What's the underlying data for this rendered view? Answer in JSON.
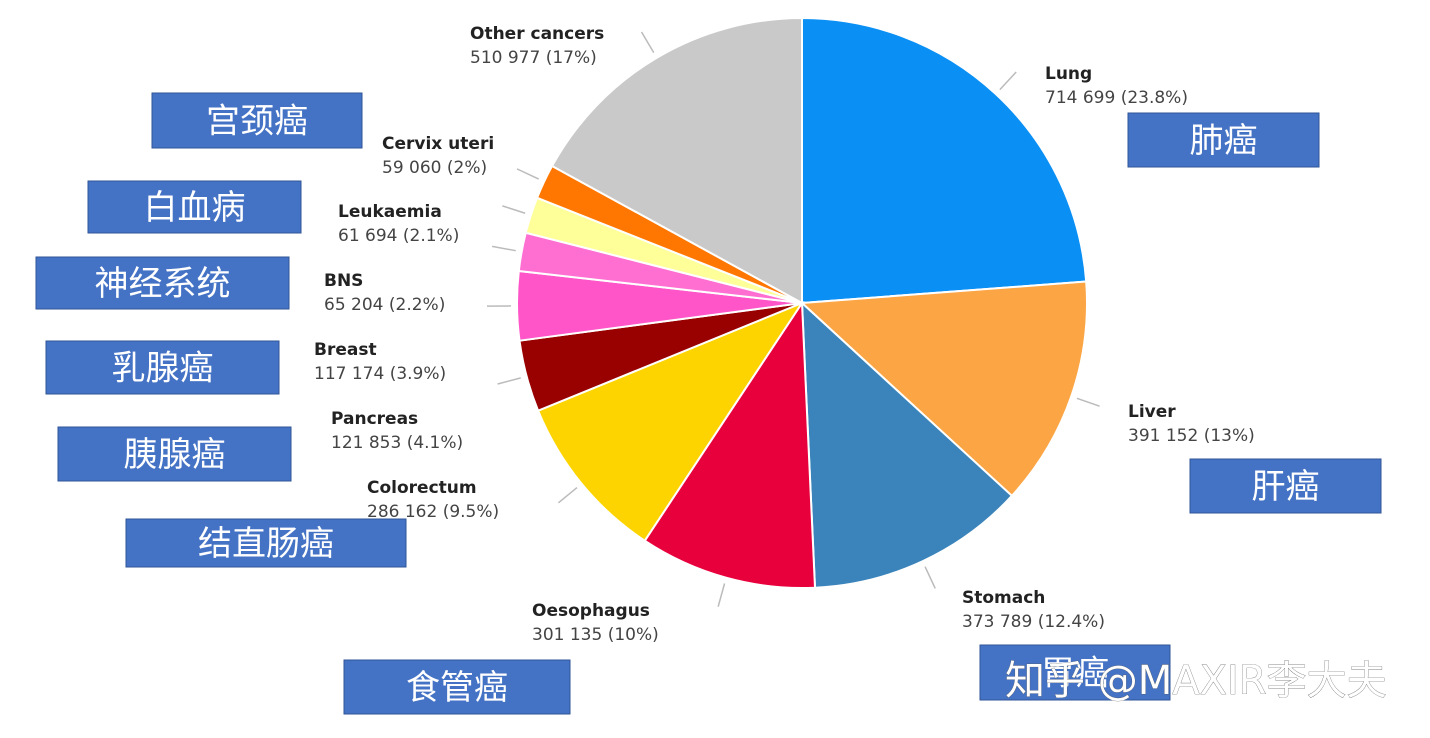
{
  "chart_data": {
    "type": "pie",
    "categories": [
      "Lung",
      "Liver",
      "Stomach",
      "Oesophagus",
      "Colorectum",
      "Pancreas",
      "Breast",
      "BNS",
      "Leukaemia",
      "Cervix uteri",
      "Other cancers"
    ],
    "values": [
      714699,
      391152,
      373789,
      301135,
      286162,
      121853,
      117174,
      65204,
      61694,
      59060,
      510977
    ],
    "value_labels": [
      "714 699 (23.8%)",
      "391 152 (13%)",
      "373 789 (12.4%)",
      "301 135 (10%)",
      "286 162 (9.5%)",
      "121 853 (4.1%)",
      "117 174 (3.9%)",
      "65 204 (2.2%)",
      "61 694 (2.1%)",
      "59 060 (2%)",
      "510 977 (17%)"
    ],
    "colors": [
      "#0a8ff5",
      "#fba544",
      "#3a84bb",
      "#e8003c",
      "#fdd400",
      "#990000",
      "#ff55c8",
      "#ff6fd2",
      "#ffff99",
      "#ff7700",
      "#c9c9c9"
    ],
    "annotations": [
      "肺癌",
      "肝癌",
      "胃癌",
      "食管癌",
      "结直肠癌",
      "胰腺癌",
      "乳腺癌",
      "神经系统",
      "白血病",
      "宫颈癌",
      null
    ],
    "watermark": "知乎 @MAXIR李大夫"
  }
}
